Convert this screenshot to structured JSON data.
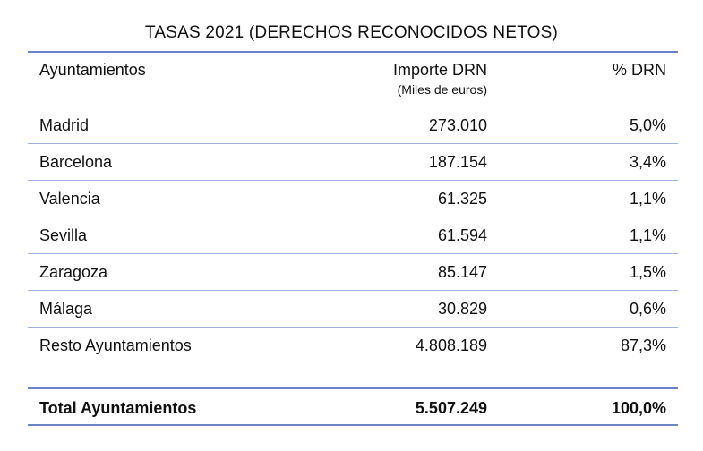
{
  "title": "TASAS 2021 (DERECHOS RECONOCIDOS NETOS)",
  "header": {
    "col1": "Ayuntamientos",
    "col2": "Importe DRN",
    "col2_sub": "(Miles de euros)",
    "col3": "% DRN"
  },
  "rows": [
    {
      "name": "Madrid",
      "importe": "273.010",
      "pct": "5,0%"
    },
    {
      "name": "Barcelona",
      "importe": "187.154",
      "pct": "3,4%"
    },
    {
      "name": "Valencia",
      "importe": "61.325",
      "pct": "1,1%"
    },
    {
      "name": "Sevilla",
      "importe": "61.594",
      "pct": "1,1%"
    },
    {
      "name": "Zaragoza",
      "importe": "85.147",
      "pct": "1,5%"
    },
    {
      "name": "Málaga",
      "importe": "30.829",
      "pct": "0,6%"
    },
    {
      "name": "Resto Ayuntamientos",
      "importe": "4.808.189",
      "pct": "87,3%"
    }
  ],
  "total": {
    "name": "Total Ayuntamientos",
    "importe": "5.507.249",
    "pct": "100,0%"
  },
  "colors": {
    "rule": "#6b86c7",
    "row_divider": "#9fb1dc"
  }
}
